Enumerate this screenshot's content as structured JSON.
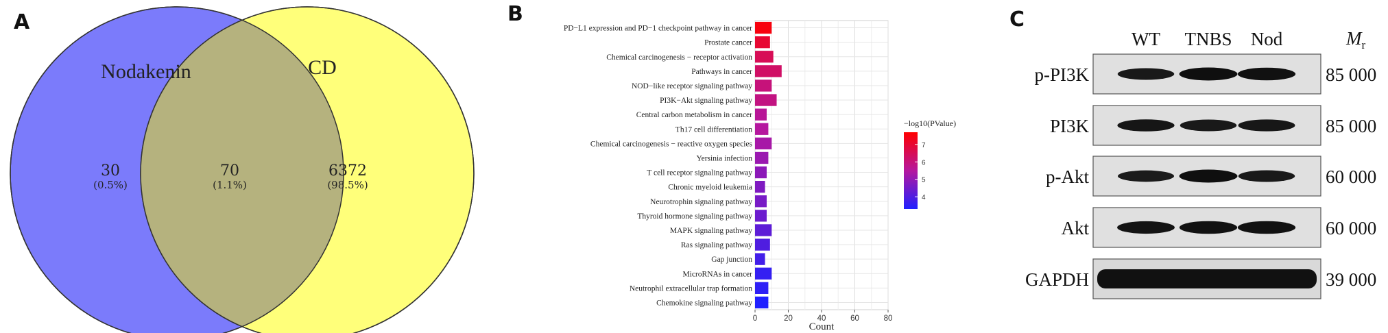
{
  "panels": {
    "a": {
      "letter": "A"
    },
    "b": {
      "letter": "B"
    },
    "c": {
      "letter": "C"
    }
  },
  "venn": {
    "left_name": "Nodakenin",
    "right_name": "CD",
    "left_color": "#7b7bfb",
    "right_color": "#ffff7a",
    "overlap_color": "#b5b27e",
    "left_count": "30",
    "left_pct": "(0.5%)",
    "overlap_count": "70",
    "overlap_pct": "(1.1%)",
    "right_count": "6372",
    "right_pct": "(98.5%)"
  },
  "chart_data": {
    "type": "bar",
    "orientation": "horizontal",
    "title": "",
    "xlabel": "Count",
    "ylabel": "",
    "xlim": [
      0,
      80
    ],
    "xticks": [
      0,
      20,
      40,
      60,
      80
    ],
    "grid": true,
    "categories": [
      "PD−L1 expression and PD−1 checkpoint pathway in cancer",
      "Prostate cancer",
      "Chemical carcinogenesis − receptor activation",
      "Pathways in cancer",
      "NOD−like receptor signaling pathway",
      "PI3K−Akt signaling pathway",
      "Central carbon metabolism in cancer",
      "Th17 cell differentiation",
      "Chemical carcinogenesis − reactive oxygen species",
      "Yersinia infection",
      "T cell receptor signaling pathway",
      "Chronic myeloid leukemia",
      "Neurotrophin signaling pathway",
      "Thyroid hormone signaling pathway",
      "MAPK signaling pathway",
      "Ras signaling pathway",
      "Gap junction",
      "MicroRNAs in cancer",
      "Neutrophil extracellular trap formation",
      "Chemokine signaling pathway"
    ],
    "values": [
      10,
      9,
      11,
      16,
      10,
      13,
      7,
      8,
      10,
      8,
      7,
      6,
      7,
      7,
      10,
      9,
      6,
      10,
      8,
      8
    ],
    "color_metric": [
      7.5,
      7.0,
      6.5,
      6.3,
      6.0,
      5.9,
      5.6,
      5.5,
      5.3,
      5.1,
      4.9,
      4.7,
      4.6,
      4.4,
      4.2,
      4.0,
      3.8,
      3.6,
      3.5,
      3.3
    ],
    "legend": {
      "title": "−log10(PValue)",
      "ticks": [
        "7",
        "6",
        "5",
        "4"
      ],
      "tick_values": [
        7,
        6,
        5,
        4
      ],
      "range": [
        3.3,
        7.7
      ],
      "color_high": "#ff0000",
      "color_low": "#2020ff",
      "placement": "right"
    }
  },
  "western_blot": {
    "lanes": [
      "WT",
      "TNBS",
      "Nod"
    ],
    "mr_label": "M",
    "mr_sub": "r",
    "rows": [
      {
        "protein": "p-PI3K",
        "mr": "85 000",
        "intensity": [
          0.75,
          0.92,
          0.88
        ]
      },
      {
        "protein": "PI3K",
        "mr": "85 000",
        "intensity": [
          0.8,
          0.75,
          0.78
        ]
      },
      {
        "protein": "p-Akt",
        "mr": "60 000",
        "intensity": [
          0.72,
          0.92,
          0.75
        ]
      },
      {
        "protein": "Akt",
        "mr": "60 000",
        "intensity": [
          0.85,
          0.88,
          0.88
        ]
      },
      {
        "protein": "GAPDH",
        "mr": "39 000",
        "intensity": [
          0.98,
          0.98,
          0.98
        ]
      }
    ]
  }
}
